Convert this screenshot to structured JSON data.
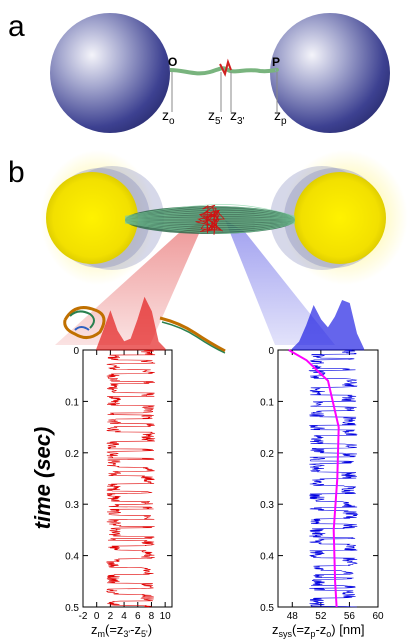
{
  "panel_a": {
    "label": "a",
    "end_o": "O",
    "end_p": "P",
    "z_o": {
      "base": "z",
      "sub": "o"
    },
    "z_5": {
      "base": "z",
      "sub": "5'"
    },
    "z_3": {
      "base": "z",
      "sub": "3'"
    },
    "z_p": {
      "base": "z",
      "sub": "p"
    }
  },
  "panel_b": {
    "label": "b",
    "time_label": "time (sec)",
    "left_xlabel": {
      "pre": "z",
      "sub1": "m",
      "mid1": "(=z",
      "sub2": "3'",
      "mid2": "-z",
      "sub3": "5'",
      "post": ")"
    },
    "right_xlabel": {
      "pre": "z",
      "sub1": "sys",
      "mid1": "(=z",
      "sub2": "p",
      "mid2": "-z",
      "sub3": "o",
      "post": ") [nm]"
    }
  },
  "colors": {
    "left_trace": "#e00000",
    "right_trace": "#0000e0",
    "avg_line": "#ff00ff",
    "bead": "#3a3f8f",
    "yellow": "#ffe500"
  },
  "chart_data": [
    {
      "type": "line",
      "title": "",
      "xlabel": "zm(=z3'-z5')",
      "ylabel": "time (sec)",
      "xlim": [
        -2,
        11
      ],
      "ylim": [
        0,
        0.5
      ],
      "x_ticks": [
        "-2",
        "0",
        "2",
        "4",
        "6",
        "8",
        "10"
      ],
      "y_ticks": [
        "0",
        "0.1",
        "0.2",
        "0.3",
        "0.4",
        "0.5"
      ],
      "states": [
        2.5,
        7.5
      ],
      "series": [
        {
          "values_summary": "two-state hopping trajectory between ~2.5 and ~7.5"
        }
      ],
      "histogram": {
        "bins_x": [
          0,
          1,
          2,
          3,
          4,
          5,
          6,
          7,
          8,
          9,
          10
        ],
        "counts": [
          0.02,
          0.35,
          0.7,
          0.35,
          0.15,
          0.2,
          0.55,
          0.95,
          0.7,
          0.15,
          0.02
        ]
      }
    },
    {
      "type": "line",
      "title": "",
      "xlabel": "zsys(=zp-zo) [nm]",
      "ylabel": "time (sec)",
      "xlim": [
        46,
        60
      ],
      "ylim": [
        0,
        0.5
      ],
      "x_ticks": [
        "48",
        "52",
        "56",
        "60"
      ],
      "y_ticks": [
        "0",
        "0.1",
        "0.2",
        "0.3",
        "0.4",
        "0.5"
      ],
      "states": [
        51.5,
        56.0
      ],
      "running_average": [
        [
          47.5,
          0
        ],
        [
          50,
          0.02
        ],
        [
          53,
          0.06
        ],
        [
          54.5,
          0.15
        ],
        [
          54.3,
          0.25
        ],
        [
          53.8,
          0.35
        ],
        [
          54.0,
          0.45
        ],
        [
          54.2,
          0.5
        ]
      ],
      "histogram": {
        "bins_x": [
          48,
          49,
          50,
          51,
          52,
          53,
          54,
          55,
          56,
          57,
          58
        ],
        "counts": [
          0.02,
          0.15,
          0.45,
          0.8,
          0.55,
          0.4,
          0.6,
          0.9,
          0.85,
          0.3,
          0.02
        ]
      }
    }
  ]
}
